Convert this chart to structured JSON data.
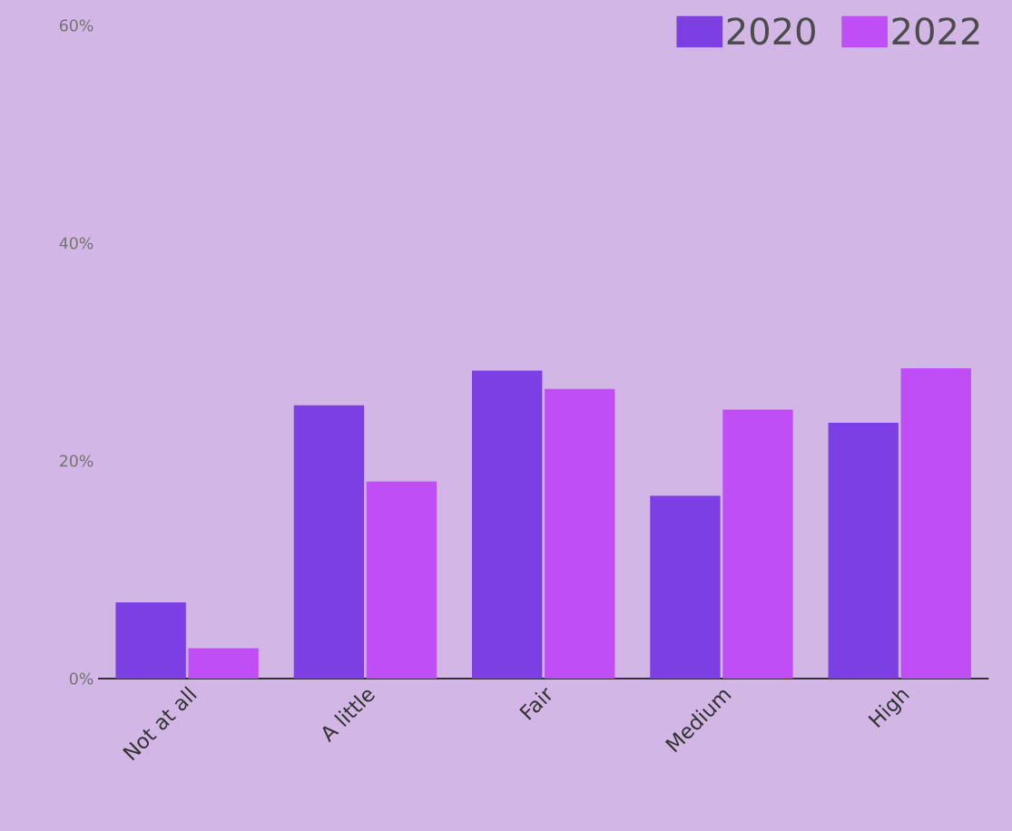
{
  "chart_data": {
    "type": "bar",
    "categories": [
      "Not at all",
      "A little",
      "Fair",
      "Medium",
      "High"
    ],
    "series": [
      {
        "name": "2020",
        "color": "#7b3fe4",
        "values": [
          7.0,
          25.1,
          28.3,
          16.8,
          23.5
        ]
      },
      {
        "name": "2022",
        "color": "#c04ef6",
        "values": [
          2.8,
          18.1,
          26.6,
          24.7,
          28.5
        ]
      }
    ],
    "ylim": [
      0,
      60
    ],
    "yticks": [
      {
        "value": 0,
        "label": "0%"
      },
      {
        "value": 20,
        "label": "20%"
      },
      {
        "value": 40,
        "label": "40%"
      },
      {
        "value": 60,
        "label": "60%"
      }
    ],
    "legend": "top right"
  }
}
